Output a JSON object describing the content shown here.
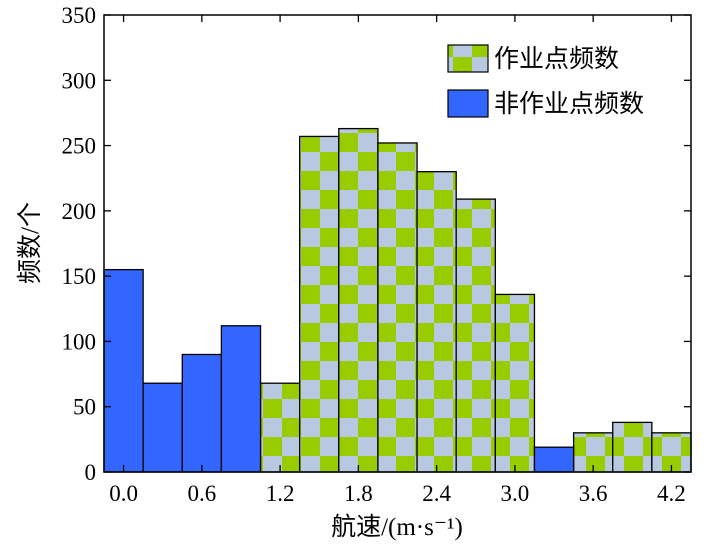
{
  "chart_data": {
    "type": "bar",
    "title": "",
    "xlabel": "航速/(m·s⁻¹)",
    "ylabel": "频数/个",
    "ylim": [
      0,
      350
    ],
    "xlim": [
      -0.15,
      4.35
    ],
    "bin_width": 0.3,
    "yticks": [
      0,
      50,
      100,
      150,
      200,
      250,
      300,
      350
    ],
    "ytick_labels": [
      "0",
      "50",
      "100",
      "150",
      "200",
      "250",
      "300",
      "350"
    ],
    "xticks": [
      0.0,
      0.6,
      1.2,
      1.8,
      2.4,
      3.0,
      3.6,
      4.2
    ],
    "xtick_labels": [
      "0.0",
      "0.6",
      "1.2",
      "1.8",
      "2.4",
      "3.0",
      "3.6",
      "4.2"
    ],
    "legend_position": "top-right",
    "series": [
      {
        "name": "作业点频数",
        "color": "#99cc00",
        "pattern_color": "#b8c8e0",
        "x": [
          1.2,
          1.5,
          1.8,
          2.1,
          2.4,
          2.7,
          3.0,
          3.6,
          3.9,
          4.2
        ],
        "values": [
          68,
          257,
          263,
          252,
          230,
          209,
          136,
          30,
          38,
          30
        ]
      },
      {
        "name": "非作业点频数",
        "color": "#3366ff",
        "x": [
          0.0,
          0.3,
          0.6,
          0.9,
          3.3
        ],
        "values": [
          155,
          68,
          90,
          112,
          19
        ]
      }
    ]
  }
}
